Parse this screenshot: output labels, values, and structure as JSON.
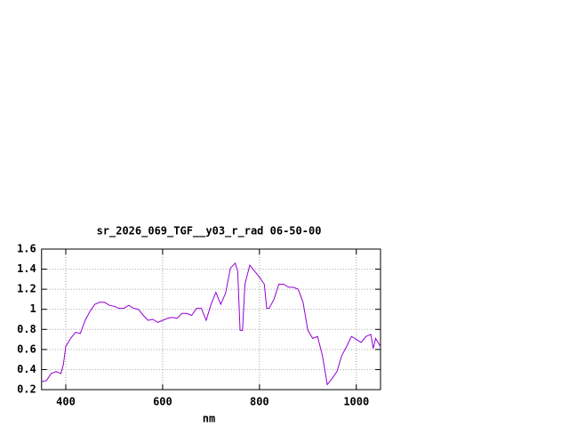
{
  "chart_data": {
    "type": "line",
    "title": "sr_2026_069_TGF__y03_r_rad 06-50-00",
    "x_label": "nm",
    "x": [
      350,
      360,
      370,
      380,
      390,
      395,
      400,
      410,
      420,
      430,
      440,
      450,
      460,
      470,
      480,
      490,
      500,
      510,
      520,
      530,
      540,
      550,
      560,
      570,
      580,
      590,
      600,
      610,
      620,
      630,
      640,
      650,
      660,
      670,
      680,
      690,
      700,
      710,
      720,
      730,
      740,
      750,
      755,
      760,
      765,
      770,
      780,
      790,
      800,
      810,
      815,
      820,
      830,
      840,
      850,
      860,
      870,
      880,
      890,
      900,
      910,
      920,
      930,
      940,
      950,
      960,
      970,
      980,
      990,
      1000,
      1010,
      1020,
      1030,
      1035,
      1040,
      1050
    ],
    "series": [
      {
        "name": "sr_2026_069_TGF__y03_r_rad",
        "color": "#9400d3",
        "values": [
          0.28,
          0.29,
          0.36,
          0.38,
          0.36,
          0.45,
          0.63,
          0.71,
          0.77,
          0.76,
          0.89,
          0.98,
          1.05,
          1.07,
          1.07,
          1.04,
          1.03,
          1.01,
          1.01,
          1.04,
          1.01,
          1.0,
          0.94,
          0.89,
          0.9,
          0.87,
          0.89,
          0.91,
          0.92,
          0.91,
          0.96,
          0.96,
          0.94,
          1.01,
          1.01,
          0.89,
          1.05,
          1.17,
          1.05,
          1.16,
          1.41,
          1.46,
          1.38,
          0.79,
          0.79,
          1.25,
          1.44,
          1.38,
          1.32,
          1.25,
          1.01,
          1.01,
          1.1,
          1.25,
          1.25,
          1.22,
          1.22,
          1.2,
          1.07,
          0.79,
          0.71,
          0.73,
          0.54,
          0.25,
          0.31,
          0.38,
          0.54,
          0.63,
          0.73,
          0.7,
          0.67,
          0.73,
          0.75,
          0.61,
          0.71,
          0.63
        ]
      }
    ],
    "xlim": [
      350,
      1050
    ],
    "xticks": [
      400,
      600,
      800,
      1000
    ],
    "ylim": [
      0.2,
      1.6
    ],
    "yticks": [
      0.2,
      0.4,
      0.6,
      0.8,
      1,
      1.2,
      1.4,
      1.6
    ],
    "grid": true
  }
}
